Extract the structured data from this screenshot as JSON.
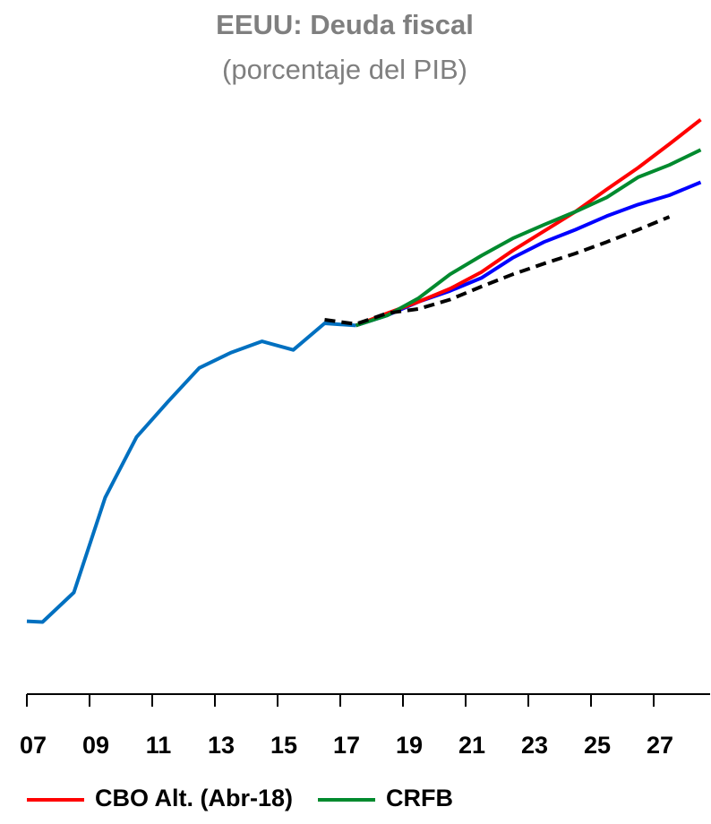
{
  "chart_data": {
    "type": "line",
    "title": "EEUU: Deuda fiscal",
    "subtitle": "(porcentaje del PIB)",
    "xlim": [
      2007,
      2028.8
    ],
    "xticks": [
      {
        "value": 2007,
        "label": "07"
      },
      {
        "value": 2009,
        "label": "09"
      },
      {
        "value": 2011,
        "label": "11"
      },
      {
        "value": 2013,
        "label": "13"
      },
      {
        "value": 2015,
        "label": "15"
      },
      {
        "value": 2017,
        "label": "17"
      },
      {
        "value": 2019,
        "label": "19"
      },
      {
        "value": 2021,
        "label": "21"
      },
      {
        "value": 2023,
        "label": "23"
      },
      {
        "value": 2025,
        "label": "25"
      },
      {
        "value": 2027,
        "label": "27"
      }
    ],
    "ylim": [
      25,
      110
    ],
    "grid": false,
    "legend": "bottom",
    "series": [
      {
        "color": "#0070c0",
        "x": [
          2007,
          2007.5,
          2008.5,
          2009.5,
          2010.5,
          2011.5,
          2012.5,
          2013.5,
          2014.5,
          2015.5,
          2016.5,
          2017.5
        ],
        "values": [
          35,
          34.9,
          39.0,
          52.2,
          60.6,
          65.5,
          70.2,
          72.3,
          73.9,
          72.7,
          76.4,
          76.1
        ]
      },
      {
        "color": "#0000ff",
        "x": [
          2017.5,
          2018.5,
          2019.5,
          2020.5,
          2021.5,
          2022.5,
          2023.5,
          2024.5,
          2025.5,
          2026.5,
          2027.5,
          2028.5
        ],
        "values": [
          76.1,
          77.5,
          79.4,
          80.9,
          82.7,
          85.5,
          87.7,
          89.4,
          91.3,
          92.9,
          94.2,
          96.0
        ]
      },
      {
        "name": "CBO Alt. (Abr-18)",
        "color": "#ff0000",
        "x": [
          2017.5,
          2018.5,
          2019.5,
          2020.5,
          2021.5,
          2022.5,
          2023.5,
          2024.5,
          2025.5,
          2026.5,
          2027.5,
          2028.5
        ],
        "values": [
          76.1,
          77.8,
          79.4,
          81.2,
          83.5,
          86.5,
          89.2,
          91.9,
          95.0,
          98.0,
          101.3,
          104.7
        ]
      },
      {
        "name": "CRFB",
        "color": "#008a2e",
        "x": [
          2017.5,
          2018.5,
          2019.5,
          2020.5,
          2021.5,
          2022.5,
          2023.5,
          2024.5,
          2025.5,
          2026.5,
          2027.5,
          2028.5
        ],
        "values": [
          76.1,
          77.5,
          79.9,
          83.2,
          85.8,
          88.2,
          90.1,
          91.9,
          93.9,
          96.7,
          98.4,
          100.5
        ]
      },
      {
        "color": "#000000",
        "dashed": true,
        "x": [
          2016.5,
          2017.5,
          2018.5,
          2019.5,
          2020.5,
          2021.5,
          2022.5,
          2023.5,
          2024.5,
          2025.5,
          2026.5,
          2027.5
        ],
        "values": [
          76.9,
          76.3,
          77.8,
          78.4,
          79.7,
          81.5,
          83.2,
          84.7,
          86.1,
          87.7,
          89.4,
          91.2
        ]
      }
    ]
  }
}
